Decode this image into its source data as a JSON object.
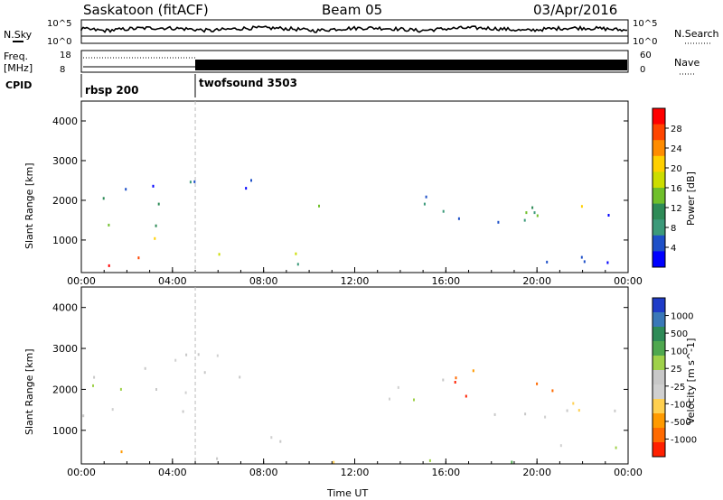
{
  "header": {
    "station": "Saskatoon (fitACF)",
    "beam": "Beam 05",
    "date": "03/Apr/2016"
  },
  "meta_panel": {
    "nsky_label": "N.Sky",
    "nsky_ticks": [
      "10^5",
      "10^0"
    ],
    "nsearch_label": "N.Search",
    "freq_label_1": "Freq.",
    "freq_label_2": "[MHz]",
    "freq_ticks": [
      "18",
      "8"
    ],
    "nave_label": "Nave",
    "nave_ticks": [
      "60",
      "0"
    ],
    "cpid_label": "CPID",
    "programs": [
      {
        "name": "rbsp 200",
        "start_hour": 0
      },
      {
        "name": "twofsound 3503",
        "start_hour": 5
      }
    ]
  },
  "chart_data": [
    {
      "type": "heatmap",
      "name": "power",
      "ylabel": "Slant Range [km]",
      "xlabel": "",
      "x_range_hours": [
        0,
        24
      ],
      "ylim": [
        180,
        4500
      ],
      "yticks": [
        "1000",
        "2000",
        "3000",
        "4000"
      ],
      "xtick_labels": [
        "00:00",
        "04:00",
        "08:00",
        "12:00",
        "16:00",
        "20:00",
        "00:00"
      ],
      "colorbar": {
        "label": "Power [dB]",
        "values": [
          "28",
          "24",
          "20",
          "16",
          "12",
          "8",
          "4"
        ],
        "colors": [
          "#ff0000",
          "#ff4500",
          "#ff8c00",
          "#ffd000",
          "#ccdd00",
          "#6fbf2a",
          "#2e8b57",
          "#3c9a7a",
          "#1e50c8",
          "#0000ff"
        ]
      },
      "regions": [
        {
          "t0": 0.0,
          "t1": 1.8,
          "r0": 250,
          "r1": 700,
          "level": 9
        },
        {
          "t0": 0.0,
          "t1": 3.2,
          "r0": 800,
          "r1": 1200,
          "level": 6
        },
        {
          "t0": 0.3,
          "t1": 4.0,
          "r0": 1200,
          "r1": 2200,
          "level": 3
        },
        {
          "t0": 0.5,
          "t1": 3.5,
          "r0": 1800,
          "r1": 2500,
          "level": 1
        },
        {
          "t0": 3.5,
          "t1": 8.0,
          "r0": 2200,
          "r1": 3000,
          "level": 1
        },
        {
          "t0": 5.0,
          "t1": 9.5,
          "r0": 500,
          "r1": 900,
          "level": 4
        },
        {
          "t0": 5.5,
          "t1": 7.0,
          "r0": 700,
          "r1": 900,
          "level": 7
        },
        {
          "t0": 8.0,
          "t1": 9.8,
          "r0": 300,
          "r1": 700,
          "level": 2
        },
        {
          "t0": 9.8,
          "t1": 10.5,
          "r0": 1400,
          "r1": 2100,
          "level": 5
        },
        {
          "t0": 11.0,
          "t1": 12.5,
          "r0": 250,
          "r1": 500,
          "level": 9
        },
        {
          "t0": 13.5,
          "t1": 17.5,
          "r0": 1700,
          "r1": 2300,
          "level": 2
        },
        {
          "t0": 16.5,
          "t1": 23.5,
          "r0": 1400,
          "r1": 2000,
          "level": 1
        },
        {
          "t0": 17.0,
          "t1": 21.5,
          "r0": 1500,
          "r1": 2000,
          "level": 4
        },
        {
          "t0": 20.5,
          "t1": 22.0,
          "r0": 1800,
          "r1": 2200,
          "level": 6
        },
        {
          "t0": 14.0,
          "t1": 24.0,
          "r0": 250,
          "r1": 600,
          "level": 1
        },
        {
          "t0": 2.0,
          "t1": 4.5,
          "r0": 300,
          "r1": 800,
          "level": 8
        }
      ]
    },
    {
      "type": "heatmap",
      "name": "velocity",
      "ylabel": "Slant Range [km]",
      "xlabel": "Time UT",
      "x_range_hours": [
        0,
        24
      ],
      "ylim": [
        180,
        4500
      ],
      "yticks": [
        "1000",
        "2000",
        "3000",
        "4000"
      ],
      "xtick_labels": [
        "00:00",
        "04:00",
        "08:00",
        "12:00",
        "16:00",
        "20:00",
        "00:00"
      ],
      "colorbar": {
        "label": "Velocity [m s^-1]",
        "values": [
          "1000",
          "500",
          "100",
          "25",
          "-25",
          "-100",
          "-500",
          "-1000"
        ],
        "colors": [
          "#1f3cc8",
          "#3a78b8",
          "#2e8b57",
          "#4fa84f",
          "#9fd14a",
          "#c8c8c8",
          "#d0d0d0",
          "#ffd050",
          "#ff9a00",
          "#ff6a00",
          "#ff2000"
        ]
      },
      "regions": [
        {
          "t0": 0.0,
          "t1": 2.0,
          "r0": 250,
          "r1": 700,
          "level": 8
        },
        {
          "t0": 0.0,
          "t1": 5.5,
          "r0": 1000,
          "r1": 2200,
          "level": 5
        },
        {
          "t0": 0.5,
          "t1": 4.0,
          "r0": 2200,
          "r1": 2700,
          "level": 5
        },
        {
          "t0": 3.5,
          "t1": 8.5,
          "r0": 2200,
          "r1": 3200,
          "level": 5
        },
        {
          "t0": 5.5,
          "t1": 9.5,
          "r0": 600,
          "r1": 1100,
          "level": 5
        },
        {
          "t0": 4.0,
          "t1": 8.0,
          "r0": 300,
          "r1": 600,
          "level": 4
        },
        {
          "t0": 9.8,
          "t1": 10.4,
          "r0": 1500,
          "r1": 2100,
          "level": 1
        },
        {
          "t0": 10.0,
          "t1": 13.0,
          "r0": 250,
          "r1": 600,
          "level": 7
        },
        {
          "t0": 13.0,
          "t1": 17.0,
          "r0": 1700,
          "r1": 2500,
          "level": 5
        },
        {
          "t0": 14.5,
          "t1": 22.0,
          "r0": 1800,
          "r1": 2500,
          "level": 9
        },
        {
          "t0": 19.5,
          "t1": 22.5,
          "r0": 1500,
          "r1": 2200,
          "level": 8
        },
        {
          "t0": 15.0,
          "t1": 24.0,
          "r0": 1200,
          "r1": 1700,
          "level": 5
        },
        {
          "t0": 19.0,
          "t1": 24.0,
          "r0": 500,
          "r1": 900,
          "level": 5
        },
        {
          "t0": 13.0,
          "t1": 19.0,
          "r0": 250,
          "r1": 500,
          "level": 3
        }
      ]
    }
  ]
}
